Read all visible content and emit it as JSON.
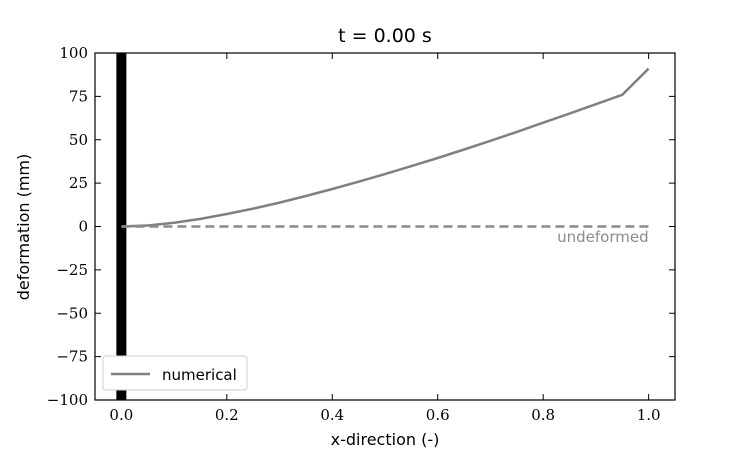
{
  "chart_data": {
    "type": "line",
    "title": "t = 0.00 s",
    "xlabel": "x-direction (-)",
    "ylabel": "deformation (mm)",
    "xlim": [
      -0.05,
      1.05
    ],
    "ylim": [
      -100,
      100
    ],
    "x_ticks": [
      0.0,
      0.2,
      0.4,
      0.6,
      0.8,
      1.0
    ],
    "x_tick_labels": [
      "0.0",
      "0.2",
      "0.4",
      "0.6",
      "0.8",
      "1.0"
    ],
    "y_ticks": [
      100,
      75,
      50,
      25,
      0,
      -25,
      -50,
      -75,
      -100
    ],
    "y_tick_labels": [
      "100",
      "75",
      "50",
      "25",
      "0",
      "−25",
      "−50",
      "−75",
      "−100"
    ],
    "grid": false,
    "legend_position": "bottom-left",
    "series": [
      {
        "name": "numerical",
        "style": "solid",
        "color": "#808080",
        "x": [
          0.0,
          0.05,
          0.1,
          0.15,
          0.2,
          0.25,
          0.3,
          0.35,
          0.4,
          0.45,
          0.5,
          0.55,
          0.6,
          0.65,
          0.7,
          0.75,
          0.8,
          0.85,
          0.9,
          0.95,
          1.0
        ],
        "y": [
          0.0,
          0.6,
          2.2,
          4.4,
          7.2,
          10.3,
          13.8,
          17.6,
          21.6,
          25.8,
          30.2,
          34.8,
          39.5,
          44.4,
          49.4,
          54.5,
          59.8,
          65.1,
          70.5,
          75.9,
          91.0
        ]
      },
      {
        "style": "dashed",
        "color": "#8c8c8c",
        "x": [
          0.0,
          1.0
        ],
        "y": [
          0,
          0
        ]
      }
    ],
    "annotations": [
      {
        "text": "undeformed",
        "x": 1.0,
        "y": -6,
        "color": "#8c8c8c"
      }
    ],
    "support": {
      "x": 0.0,
      "color": "#000000"
    }
  }
}
